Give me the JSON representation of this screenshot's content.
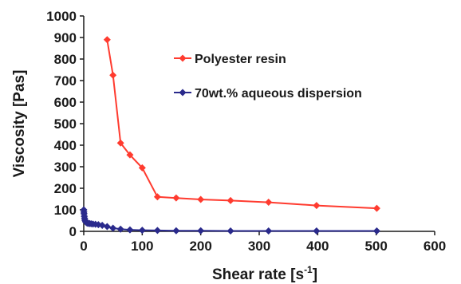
{
  "chart_data": {
    "type": "line",
    "xlabel": "Shear rate [s",
    "xlabel_sup": "-1",
    "xlabel_end": "]",
    "ylabel": "Viscosity [Pas]",
    "xlim": [
      0,
      600
    ],
    "ylim": [
      0,
      1000
    ],
    "x_ticks": [
      "0",
      "100",
      "200",
      "300",
      "400",
      "500",
      "600"
    ],
    "y_ticks": [
      "0",
      "100",
      "200",
      "300",
      "400",
      "500",
      "600",
      "700",
      "800",
      "900",
      "1000"
    ],
    "grid": false,
    "legend_placement": "top-right",
    "series": [
      {
        "name": "Polyester resin",
        "color": "#ff3b2f",
        "marker": "diamond",
        "x": [
          40,
          50,
          63,
          79,
          100,
          126,
          158,
          200,
          251,
          316,
          398,
          501
        ],
        "y": [
          890,
          725,
          410,
          355,
          295,
          160,
          155,
          148,
          143,
          135,
          120,
          107
        ]
      },
      {
        "name": "70wt.% aqueous dispersion",
        "color": "#2a2a8c",
        "marker": "diamond",
        "x": [
          0.1,
          0.2,
          0.5,
          1,
          1.5,
          2,
          3,
          4,
          5,
          6.3,
          8,
          10,
          12.6,
          15.8,
          20,
          25,
          31.6,
          40,
          50,
          63,
          79,
          100,
          126,
          158,
          200,
          251,
          316,
          398,
          501
        ],
        "y": [
          100,
          90,
          82,
          70,
          60,
          52,
          45,
          42,
          40,
          38,
          37,
          36,
          35,
          34,
          33,
          31,
          28,
          22,
          15,
          10,
          7,
          5,
          4,
          3,
          3,
          2,
          2,
          2,
          2
        ]
      }
    ]
  }
}
